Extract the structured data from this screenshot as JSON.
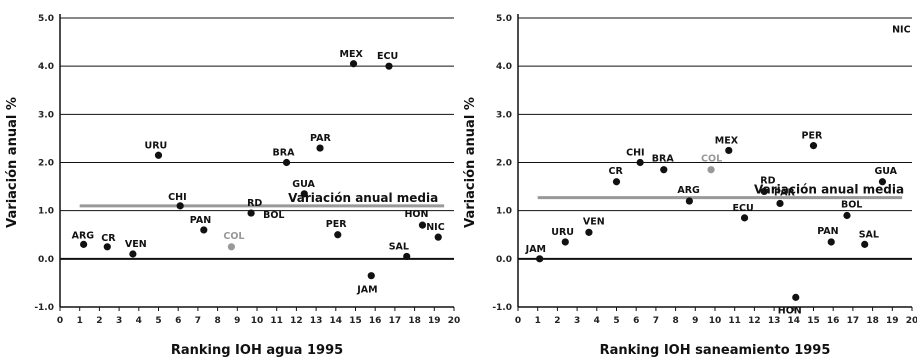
{
  "chart_data": [
    {
      "type": "scatter",
      "xlabel": "Ranking IOH agua 1995",
      "ylabel": "Variación anual %",
      "xlim": [
        0,
        20
      ],
      "ylim": [
        -1,
        5
      ],
      "x_ticks": [
        "0",
        "1",
        "2",
        "3",
        "4",
        "5",
        "6",
        "7",
        "8",
        "9",
        "10",
        "11",
        "12",
        "13",
        "14",
        "15",
        "16",
        "17",
        "18",
        "19",
        "20"
      ],
      "y_ticks": [
        "-1.0",
        "0.0",
        "1.0",
        "2.0",
        "3.0",
        "4.0",
        "5.0"
      ],
      "grid": "horizontal",
      "reference_line": {
        "label": "Variación anual media",
        "y": 1.1,
        "color": "#999999"
      },
      "points": [
        {
          "label": "ARG",
          "x": 1.2,
          "y": 0.3
        },
        {
          "label": "CR",
          "x": 2.4,
          "y": 0.25
        },
        {
          "label": "VEN",
          "x": 3.7,
          "y": 0.1
        },
        {
          "label": "URU",
          "x": 5.0,
          "y": 2.15
        },
        {
          "label": "CHI",
          "x": 6.1,
          "y": 1.1
        },
        {
          "label": "PAN",
          "x": 7.3,
          "y": 0.6
        },
        {
          "label": "COL",
          "x": 8.7,
          "y": 0.25,
          "highlight": true
        },
        {
          "label": "RD",
          "x": 9.7,
          "y": 0.95
        },
        {
          "label": "BOL",
          "x": 9.7,
          "y": 0.95,
          "label_only": true
        },
        {
          "label": "BRA",
          "x": 11.5,
          "y": 2.0
        },
        {
          "label": "GUA",
          "x": 12.4,
          "y": 1.35
        },
        {
          "label": "PAR",
          "x": 13.2,
          "y": 2.3
        },
        {
          "label": "PER",
          "x": 14.1,
          "y": 0.5
        },
        {
          "label": "MEX",
          "x": 14.9,
          "y": 4.05
        },
        {
          "label": "JAM",
          "x": 15.8,
          "y": -0.35
        },
        {
          "label": "ECU",
          "x": 16.7,
          "y": 4.0
        },
        {
          "label": "SAL",
          "x": 17.6,
          "y": 0.05
        },
        {
          "label": "HON",
          "x": 18.4,
          "y": 0.7
        },
        {
          "label": "NIC",
          "x": 19.2,
          "y": 0.45
        }
      ]
    },
    {
      "type": "scatter",
      "xlabel": "Ranking IOH saneamiento 1995",
      "ylabel": "Variación anual %",
      "xlim": [
        0,
        20
      ],
      "ylim": [
        -1,
        5
      ],
      "x_ticks": [
        "0",
        "1",
        "2",
        "3",
        "4",
        "5",
        "6",
        "7",
        "8",
        "9",
        "10",
        "11",
        "12",
        "13",
        "14",
        "15",
        "16",
        "17",
        "18",
        "19",
        "20"
      ],
      "y_ticks": [
        "-1.0",
        "0.0",
        "1.0",
        "2.0",
        "3.0",
        "4.0",
        "5.0"
      ],
      "grid": "horizontal",
      "reference_line": {
        "label": "Variación anual media",
        "y": 1.27,
        "color": "#999999"
      },
      "points": [
        {
          "label": "JAM",
          "x": 1.1,
          "y": 0.0
        },
        {
          "label": "URU",
          "x": 2.4,
          "y": 0.35
        },
        {
          "label": "VEN",
          "x": 3.6,
          "y": 0.55
        },
        {
          "label": "CR",
          "x": 5.0,
          "y": 1.6
        },
        {
          "label": "CHI",
          "x": 6.2,
          "y": 2.0
        },
        {
          "label": "BRA",
          "x": 7.4,
          "y": 1.85
        },
        {
          "label": "ARG",
          "x": 8.7,
          "y": 1.2
        },
        {
          "label": "COL",
          "x": 9.8,
          "y": 1.85,
          "highlight": true
        },
        {
          "label": "MEX",
          "x": 10.7,
          "y": 2.25
        },
        {
          "label": "ECU",
          "x": 11.5,
          "y": 0.85
        },
        {
          "label": "RD",
          "x": 12.5,
          "y": 1.4
        },
        {
          "label": "PAR",
          "x": 13.3,
          "y": 1.15
        },
        {
          "label": "HON",
          "x": 14.1,
          "y": -0.8
        },
        {
          "label": "PER",
          "x": 15.0,
          "y": 2.35
        },
        {
          "label": "PAN",
          "x": 15.9,
          "y": 0.35
        },
        {
          "label": "BOL",
          "x": 16.7,
          "y": 0.9
        },
        {
          "label": "SAL",
          "x": 17.6,
          "y": 0.3
        },
        {
          "label": "GUA",
          "x": 18.5,
          "y": 1.6
        },
        {
          "label": "NIC",
          "x": 19.6,
          "y": 4.7,
          "no_marker": true
        }
      ]
    }
  ],
  "colors": {
    "marker": "#111111",
    "highlight": "#999999",
    "reference_line": "#999999",
    "grid": "#111111"
  }
}
